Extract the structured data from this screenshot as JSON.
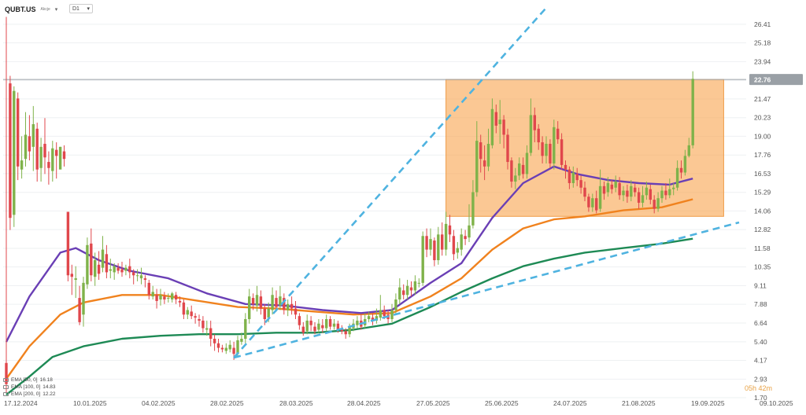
{
  "header": {
    "symbol": "QUBT.US",
    "subtitle": "Akcje",
    "dropdown_icon": "chevron-down-icon",
    "timeframe": "D1"
  },
  "timer": "05h 42m",
  "legend": [
    {
      "label": "EMA [50, 0]",
      "value": "16.18",
      "color": "#6a3fb5"
    },
    {
      "label": "EMA [100, 0]",
      "value": "14.83",
      "color": "#f0821e"
    },
    {
      "label": "EMA [200, 0]",
      "value": "12.22",
      "color": "#1e8a55"
    }
  ],
  "chart_data": {
    "type": "candlestick",
    "y_scale": "linear",
    "ylim": [
      1.7,
      27.6
    ],
    "y_ticks": [
      "26.41",
      "25.18",
      "23.94",
      "22.70",
      "21.47",
      "20.23",
      "19.00",
      "17.76",
      "16.53",
      "15.29",
      "14.06",
      "12.82",
      "11.58",
      "10.35",
      "9.11",
      "7.88",
      "6.64",
      "5.40",
      "4.17",
      "2.93",
      "1.70"
    ],
    "current_price": "22.76",
    "x_ticks": [
      "17.12.2024",
      "10.01.2025",
      "04.02.2025",
      "28.02.2025",
      "28.03.2025",
      "28.04.2025",
      "27.05.2025",
      "25.06.2025",
      "24.07.2025",
      "21.08.2025",
      "19.09.2025",
      "09.10.2025"
    ],
    "colors": {
      "up": "#7fb24a",
      "down": "#e0474c",
      "channel": "#4fb3e0",
      "zone": "#f9a653",
      "price_line": "#9aa0a6"
    },
    "candles": [
      [
        0,
        4.0,
        2.6,
        26.9,
        2.0
      ],
      [
        1,
        22.5,
        13.6,
        23.0,
        12.8
      ],
      [
        2,
        13.8,
        22.0,
        22.3,
        13.0
      ],
      [
        3,
        21.5,
        17.0,
        21.9,
        16.1
      ],
      [
        4,
        16.8,
        17.4,
        19.0,
        16.2
      ],
      [
        5,
        17.5,
        19.1,
        20.6,
        17.0
      ],
      [
        6,
        19.0,
        18.0,
        20.4,
        17.4
      ],
      [
        7,
        18.3,
        19.8,
        21.0,
        16.7
      ],
      [
        8,
        19.5,
        16.8,
        19.9,
        16.0
      ],
      [
        9,
        16.9,
        18.3,
        18.9,
        16.0
      ],
      [
        10,
        18.5,
        17.6,
        20.2,
        16.5
      ],
      [
        11,
        17.3,
        16.9,
        18.0,
        15.8
      ],
      [
        12,
        16.7,
        18.2,
        18.7,
        16.0
      ],
      [
        13,
        18.1,
        17.7,
        18.6,
        16.2
      ],
      [
        14,
        16.8,
        18.3,
        18.3,
        17.5
      ],
      [
        15,
        18.0,
        17.5,
        18.4,
        17.0
      ],
      [
        16,
        14.0,
        9.8,
        14.0,
        9.4
      ],
      [
        17,
        9.9,
        9.7,
        10.5,
        8.5
      ],
      [
        18,
        9.5,
        9.6,
        10.4,
        8.3
      ],
      [
        19,
        8.3,
        6.7,
        9.1,
        6.5
      ],
      [
        20,
        7.2,
        9.3,
        9.7,
        6.4
      ],
      [
        21,
        9.2,
        11.8,
        12.3,
        8.9
      ],
      [
        22,
        11.9,
        9.8,
        12.9,
        9.4
      ],
      [
        23,
        9.7,
        10.8,
        11.3,
        9.1
      ],
      [
        24,
        10.5,
        9.9,
        11.4,
        9.5
      ],
      [
        25,
        10.3,
        11.5,
        12.4,
        10.0
      ],
      [
        26,
        11.2,
        10.0,
        11.8,
        9.6
      ],
      [
        27,
        10.1,
        10.2,
        10.9,
        9.6
      ],
      [
        28,
        10.0,
        10.4,
        10.6,
        9.5
      ],
      [
        29,
        10.3,
        10.1,
        10.6,
        9.9
      ],
      [
        30,
        10.2,
        10.0,
        10.7,
        9.7
      ],
      [
        31,
        10.1,
        10.3,
        10.5,
        9.8
      ],
      [
        32,
        10.4,
        10.0,
        10.9,
        9.6
      ],
      [
        33,
        10.0,
        9.8,
        10.2,
        9.2
      ],
      [
        34,
        9.8,
        9.8,
        10.2,
        9.4
      ],
      [
        35,
        9.6,
        9.8,
        10.3,
        9.2
      ],
      [
        36,
        9.6,
        9.5,
        9.8,
        9.0
      ],
      [
        37,
        9.3,
        8.5,
        9.5,
        8.2
      ],
      [
        38,
        8.4,
        8.7,
        9.1,
        8.2
      ],
      [
        39,
        8.5,
        8.1,
        8.9,
        7.6
      ],
      [
        40,
        8.2,
        8.5,
        8.9,
        7.8
      ],
      [
        41,
        8.4,
        8.2,
        8.7,
        7.9
      ],
      [
        42,
        8.3,
        8.3,
        8.6,
        8.0
      ],
      [
        43,
        8.2,
        8.6,
        8.7,
        8.0
      ],
      [
        44,
        8.5,
        8.2,
        8.7,
        7.9
      ],
      [
        45,
        8.1,
        8.0,
        8.4,
        7.7
      ],
      [
        46,
        8.0,
        7.2,
        8.2,
        6.9
      ],
      [
        47,
        7.2,
        7.5,
        7.7,
        6.9
      ],
      [
        48,
        7.4,
        7.1,
        7.8,
        6.9
      ],
      [
        49,
        7.1,
        7.0,
        7.3,
        6.6
      ],
      [
        50,
        6.9,
        6.8,
        7.2,
        6.4
      ],
      [
        51,
        6.8,
        6.3,
        7.1,
        6.0
      ],
      [
        52,
        6.2,
        6.3,
        6.8,
        5.8
      ],
      [
        53,
        6.3,
        5.6,
        6.8,
        5.1
      ],
      [
        54,
        5.6,
        5.3,
        5.9,
        4.8
      ],
      [
        55,
        5.3,
        5.0,
        5.6,
        4.7
      ],
      [
        56,
        5.0,
        4.9,
        5.2,
        4.7
      ],
      [
        57,
        4.8,
        5.0,
        5.3,
        4.6
      ],
      [
        58,
        4.9,
        5.2,
        5.5,
        4.7
      ],
      [
        59,
        5.0,
        4.6,
        5.4,
        4.2
      ],
      [
        60,
        4.6,
        5.5,
        5.8,
        4.4
      ],
      [
        61,
        5.4,
        5.6,
        6.0,
        5.2
      ],
      [
        62,
        5.6,
        6.9,
        7.3,
        5.3
      ],
      [
        63,
        6.9,
        8.4,
        8.9,
        6.6
      ],
      [
        64,
        8.3,
        7.9,
        8.6,
        7.5
      ],
      [
        65,
        7.8,
        8.5,
        9.1,
        7.4
      ],
      [
        66,
        8.4,
        7.6,
        8.8,
        7.2
      ],
      [
        67,
        7.6,
        6.9,
        7.9,
        6.5
      ],
      [
        68,
        7.0,
        7.6,
        8.0,
        6.7
      ],
      [
        69,
        7.5,
        8.5,
        9.0,
        7.2
      ],
      [
        70,
        8.3,
        7.7,
        8.8,
        7.4
      ],
      [
        71,
        7.8,
        8.4,
        9.1,
        7.5
      ],
      [
        72,
        8.3,
        7.5,
        8.6,
        7.2
      ],
      [
        73,
        7.5,
        7.9,
        8.2,
        7.1
      ],
      [
        74,
        7.9,
        7.6,
        8.4,
        7.2
      ],
      [
        75,
        7.6,
        7.2,
        8.1,
        6.9
      ],
      [
        76,
        7.1,
        6.5,
        7.3,
        6.2
      ],
      [
        77,
        6.4,
        6.0,
        6.7,
        5.8
      ],
      [
        78,
        6.1,
        6.8,
        7.2,
        5.9
      ],
      [
        79,
        6.8,
        6.5,
        7.1,
        6.1
      ],
      [
        80,
        6.4,
        6.1,
        6.7,
        5.9
      ],
      [
        81,
        6.2,
        6.6,
        6.9,
        6.0
      ],
      [
        82,
        6.5,
        6.3,
        6.9,
        6.0
      ],
      [
        83,
        6.3,
        6.9,
        7.2,
        6.1
      ],
      [
        84,
        6.9,
        6.4,
        7.1,
        6.2
      ],
      [
        85,
        6.4,
        6.6,
        6.9,
        6.2
      ],
      [
        86,
        6.6,
        6.2,
        6.8,
        6.0
      ],
      [
        87,
        6.2,
        6.1,
        6.5,
        5.9
      ],
      [
        88,
        6.1,
        5.9,
        6.3,
        5.6
      ],
      [
        89,
        5.9,
        6.4,
        6.6,
        5.7
      ],
      [
        90,
        6.3,
        6.6,
        6.9,
        6.1
      ],
      [
        91,
        6.5,
        6.8,
        7.1,
        6.3
      ],
      [
        92,
        6.8,
        6.4,
        7.2,
        6.2
      ],
      [
        93,
        6.5,
        6.9,
        7.3,
        6.3
      ],
      [
        94,
        6.9,
        7.1,
        7.4,
        6.7
      ],
      [
        95,
        7.0,
        6.8,
        7.3,
        6.5
      ],
      [
        96,
        6.8,
        7.1,
        7.6,
        6.6
      ],
      [
        97,
        7.0,
        7.5,
        8.5,
        6.8
      ],
      [
        98,
        7.5,
        7.1,
        7.8,
        6.9
      ],
      [
        99,
        7.2,
        6.9,
        7.5,
        6.6
      ],
      [
        100,
        6.9,
        7.5,
        7.9,
        6.7
      ],
      [
        101,
        7.5,
        8.2,
        8.6,
        7.2
      ],
      [
        102,
        8.2,
        9.0,
        9.6,
        7.9
      ],
      [
        103,
        8.8,
        8.5,
        9.2,
        8.2
      ],
      [
        104,
        8.5,
        9.1,
        9.5,
        8.2
      ],
      [
        105,
        9.0,
        8.8,
        9.4,
        8.4
      ],
      [
        106,
        8.8,
        9.4,
        9.8,
        8.5
      ],
      [
        107,
        9.3,
        9.3,
        9.6,
        9.0
      ],
      [
        108,
        9.3,
        12.4,
        12.7,
        9.1
      ],
      [
        109,
        12.4,
        11.5,
        12.9,
        11.0
      ],
      [
        110,
        11.5,
        12.2,
        12.9,
        11.1
      ],
      [
        111,
        12.1,
        10.8,
        12.3,
        10.4
      ],
      [
        112,
        10.8,
        12.5,
        13.0,
        10.5
      ],
      [
        113,
        12.5,
        11.5,
        13.3,
        11.1
      ],
      [
        114,
        11.5,
        13.2,
        14.0,
        11.1
      ],
      [
        115,
        13.1,
        12.5,
        13.8,
        12.0
      ],
      [
        116,
        12.4,
        11.2,
        12.8,
        10.8
      ],
      [
        117,
        11.3,
        11.6,
        12.0,
        10.9
      ],
      [
        118,
        11.5,
        12.5,
        12.9,
        11.1
      ],
      [
        119,
        12.4,
        12.2,
        12.8,
        11.8
      ],
      [
        120,
        12.3,
        13.1,
        14.5,
        12.0
      ],
      [
        121,
        13.1,
        15.3,
        16.1,
        12.9
      ],
      [
        122,
        15.3,
        18.7,
        20.0,
        15.0
      ],
      [
        123,
        18.6,
        17.5,
        19.1,
        16.6
      ],
      [
        124,
        17.4,
        17.0,
        18.4,
        16.1
      ],
      [
        125,
        17.0,
        18.5,
        19.5,
        16.7
      ],
      [
        126,
        18.4,
        20.8,
        21.5,
        18.2
      ],
      [
        127,
        20.6,
        19.7,
        21.1,
        19.2
      ],
      [
        128,
        19.8,
        20.1,
        21.4,
        18.5
      ],
      [
        129,
        20.1,
        19.1,
        20.4,
        18.2
      ],
      [
        130,
        19.1,
        17.3,
        19.5,
        16.8
      ],
      [
        131,
        17.4,
        16.0,
        17.6,
        15.6
      ],
      [
        132,
        16.0,
        16.4,
        16.9,
        15.5
      ],
      [
        133,
        16.4,
        17.2,
        17.6,
        16.1
      ],
      [
        134,
        17.1,
        16.5,
        17.6,
        16.2
      ],
      [
        135,
        16.5,
        17.9,
        18.4,
        16.2
      ],
      [
        136,
        17.9,
        20.4,
        21.5,
        17.7
      ],
      [
        137,
        20.4,
        19.4,
        20.9,
        18.6
      ],
      [
        138,
        19.5,
        18.6,
        19.8,
        18.1
      ],
      [
        139,
        18.6,
        17.7,
        19.0,
        17.2
      ],
      [
        140,
        17.7,
        18.5,
        19.0,
        17.2
      ],
      [
        141,
        18.5,
        17.2,
        18.8,
        16.9
      ],
      [
        142,
        17.2,
        19.6,
        20.1,
        16.8
      ],
      [
        143,
        19.5,
        18.8,
        20.0,
        18.5
      ],
      [
        144,
        18.8,
        17.1,
        19.2,
        16.8
      ],
      [
        145,
        17.1,
        16.8,
        17.4,
        16.2
      ],
      [
        146,
        16.8,
        15.9,
        17.0,
        15.5
      ],
      [
        147,
        15.9,
        16.6,
        17.0,
        15.6
      ],
      [
        148,
        16.5,
        16.1,
        16.9,
        15.7
      ],
      [
        149,
        16.1,
        15.6,
        16.4,
        15.2
      ],
      [
        150,
        15.6,
        15.0,
        16.0,
        14.7
      ],
      [
        151,
        15.0,
        14.3,
        15.2,
        14.0
      ],
      [
        152,
        14.3,
        14.9,
        15.2,
        14.0
      ],
      [
        153,
        14.9,
        14.1,
        15.4,
        13.9
      ],
      [
        154,
        14.2,
        15.7,
        16.8,
        14.0
      ],
      [
        155,
        15.7,
        15.2,
        16.0,
        14.8
      ],
      [
        156,
        15.3,
        15.9,
        16.3,
        15.0
      ],
      [
        157,
        15.8,
        15.5,
        16.1,
        15.2
      ],
      [
        158,
        15.6,
        16.0,
        16.4,
        15.3
      ],
      [
        159,
        15.9,
        15.1,
        16.3,
        14.8
      ],
      [
        160,
        15.1,
        15.4,
        15.7,
        14.7
      ],
      [
        161,
        15.4,
        15.0,
        15.8,
        14.6
      ],
      [
        162,
        15.0,
        15.7,
        16.1,
        14.7
      ],
      [
        163,
        15.6,
        15.3,
        15.9,
        15.0
      ],
      [
        164,
        15.3,
        14.6,
        15.6,
        14.2
      ],
      [
        165,
        14.6,
        15.1,
        15.7,
        14.3
      ],
      [
        166,
        15.1,
        15.6,
        16.0,
        14.8
      ],
      [
        167,
        15.5,
        14.8,
        15.8,
        14.5
      ],
      [
        168,
        14.8,
        14.2,
        15.1,
        13.9
      ],
      [
        169,
        14.2,
        14.9,
        15.3,
        14.0
      ],
      [
        170,
        14.9,
        15.4,
        15.7,
        14.6
      ],
      [
        171,
        15.4,
        15.1,
        15.9,
        14.8
      ],
      [
        172,
        15.1,
        15.5,
        16.2,
        14.9
      ],
      [
        173,
        15.5,
        15.6,
        15.9,
        15.1
      ],
      [
        174,
        15.6,
        16.9,
        17.4,
        15.4
      ],
      [
        175,
        16.9,
        16.6,
        17.4,
        16.2
      ],
      [
        176,
        16.6,
        17.7,
        18.1,
        16.4
      ],
      [
        177,
        17.7,
        18.4,
        18.9,
        17.6
      ],
      [
        178,
        18.4,
        22.8,
        23.3,
        18.2
      ]
    ],
    "ema50": [
      [
        0,
        5.4
      ],
      [
        6,
        8.4
      ],
      [
        14,
        11.3
      ],
      [
        18,
        11.6
      ],
      [
        24,
        10.8
      ],
      [
        32,
        10.1
      ],
      [
        42,
        9.6
      ],
      [
        52,
        8.6
      ],
      [
        62,
        7.9
      ],
      [
        72,
        7.8
      ],
      [
        82,
        7.5
      ],
      [
        92,
        7.3
      ],
      [
        100,
        7.5
      ],
      [
        110,
        9.3
      ],
      [
        118,
        10.6
      ],
      [
        126,
        13.6
      ],
      [
        134,
        15.9
      ],
      [
        142,
        17.0
      ],
      [
        148,
        16.5
      ],
      [
        156,
        16.1
      ],
      [
        164,
        15.9
      ],
      [
        172,
        15.8
      ],
      [
        178,
        16.2
      ]
    ],
    "ema100": [
      [
        0,
        2.95
      ],
      [
        6,
        5.1
      ],
      [
        14,
        7.2
      ],
      [
        20,
        8.0
      ],
      [
        30,
        8.5
      ],
      [
        40,
        8.5
      ],
      [
        50,
        8.1
      ],
      [
        60,
        7.7
      ],
      [
        70,
        7.6
      ],
      [
        80,
        7.4
      ],
      [
        90,
        7.2
      ],
      [
        100,
        7.3
      ],
      [
        110,
        8.4
      ],
      [
        118,
        9.6
      ],
      [
        126,
        11.5
      ],
      [
        134,
        12.9
      ],
      [
        142,
        13.5
      ],
      [
        150,
        13.7
      ],
      [
        160,
        14.1
      ],
      [
        170,
        14.3
      ],
      [
        178,
        14.83
      ]
    ],
    "ema200": [
      [
        0,
        1.9
      ],
      [
        6,
        3.1
      ],
      [
        12,
        4.4
      ],
      [
        20,
        5.1
      ],
      [
        30,
        5.6
      ],
      [
        40,
        5.8
      ],
      [
        50,
        5.9
      ],
      [
        60,
        5.9
      ],
      [
        70,
        6.0
      ],
      [
        80,
        6.0
      ],
      [
        90,
        6.2
      ],
      [
        100,
        6.6
      ],
      [
        110,
        7.7
      ],
      [
        118,
        8.7
      ],
      [
        126,
        9.6
      ],
      [
        134,
        10.4
      ],
      [
        142,
        10.9
      ],
      [
        150,
        11.3
      ],
      [
        160,
        11.6
      ],
      [
        170,
        11.9
      ],
      [
        178,
        12.22
      ]
    ],
    "trendlines": [
      {
        "from": [
          59,
          4.35
        ],
        "to": [
          140,
          27.5
        ]
      },
      {
        "from": [
          59,
          4.35
        ],
        "to": [
          190,
          13.3
        ]
      }
    ],
    "zone": {
      "from_x": 114,
      "to_x": 186,
      "y_low": 13.7,
      "y_high": 22.76
    },
    "grid": true,
    "legend_position": "bottom-left"
  }
}
